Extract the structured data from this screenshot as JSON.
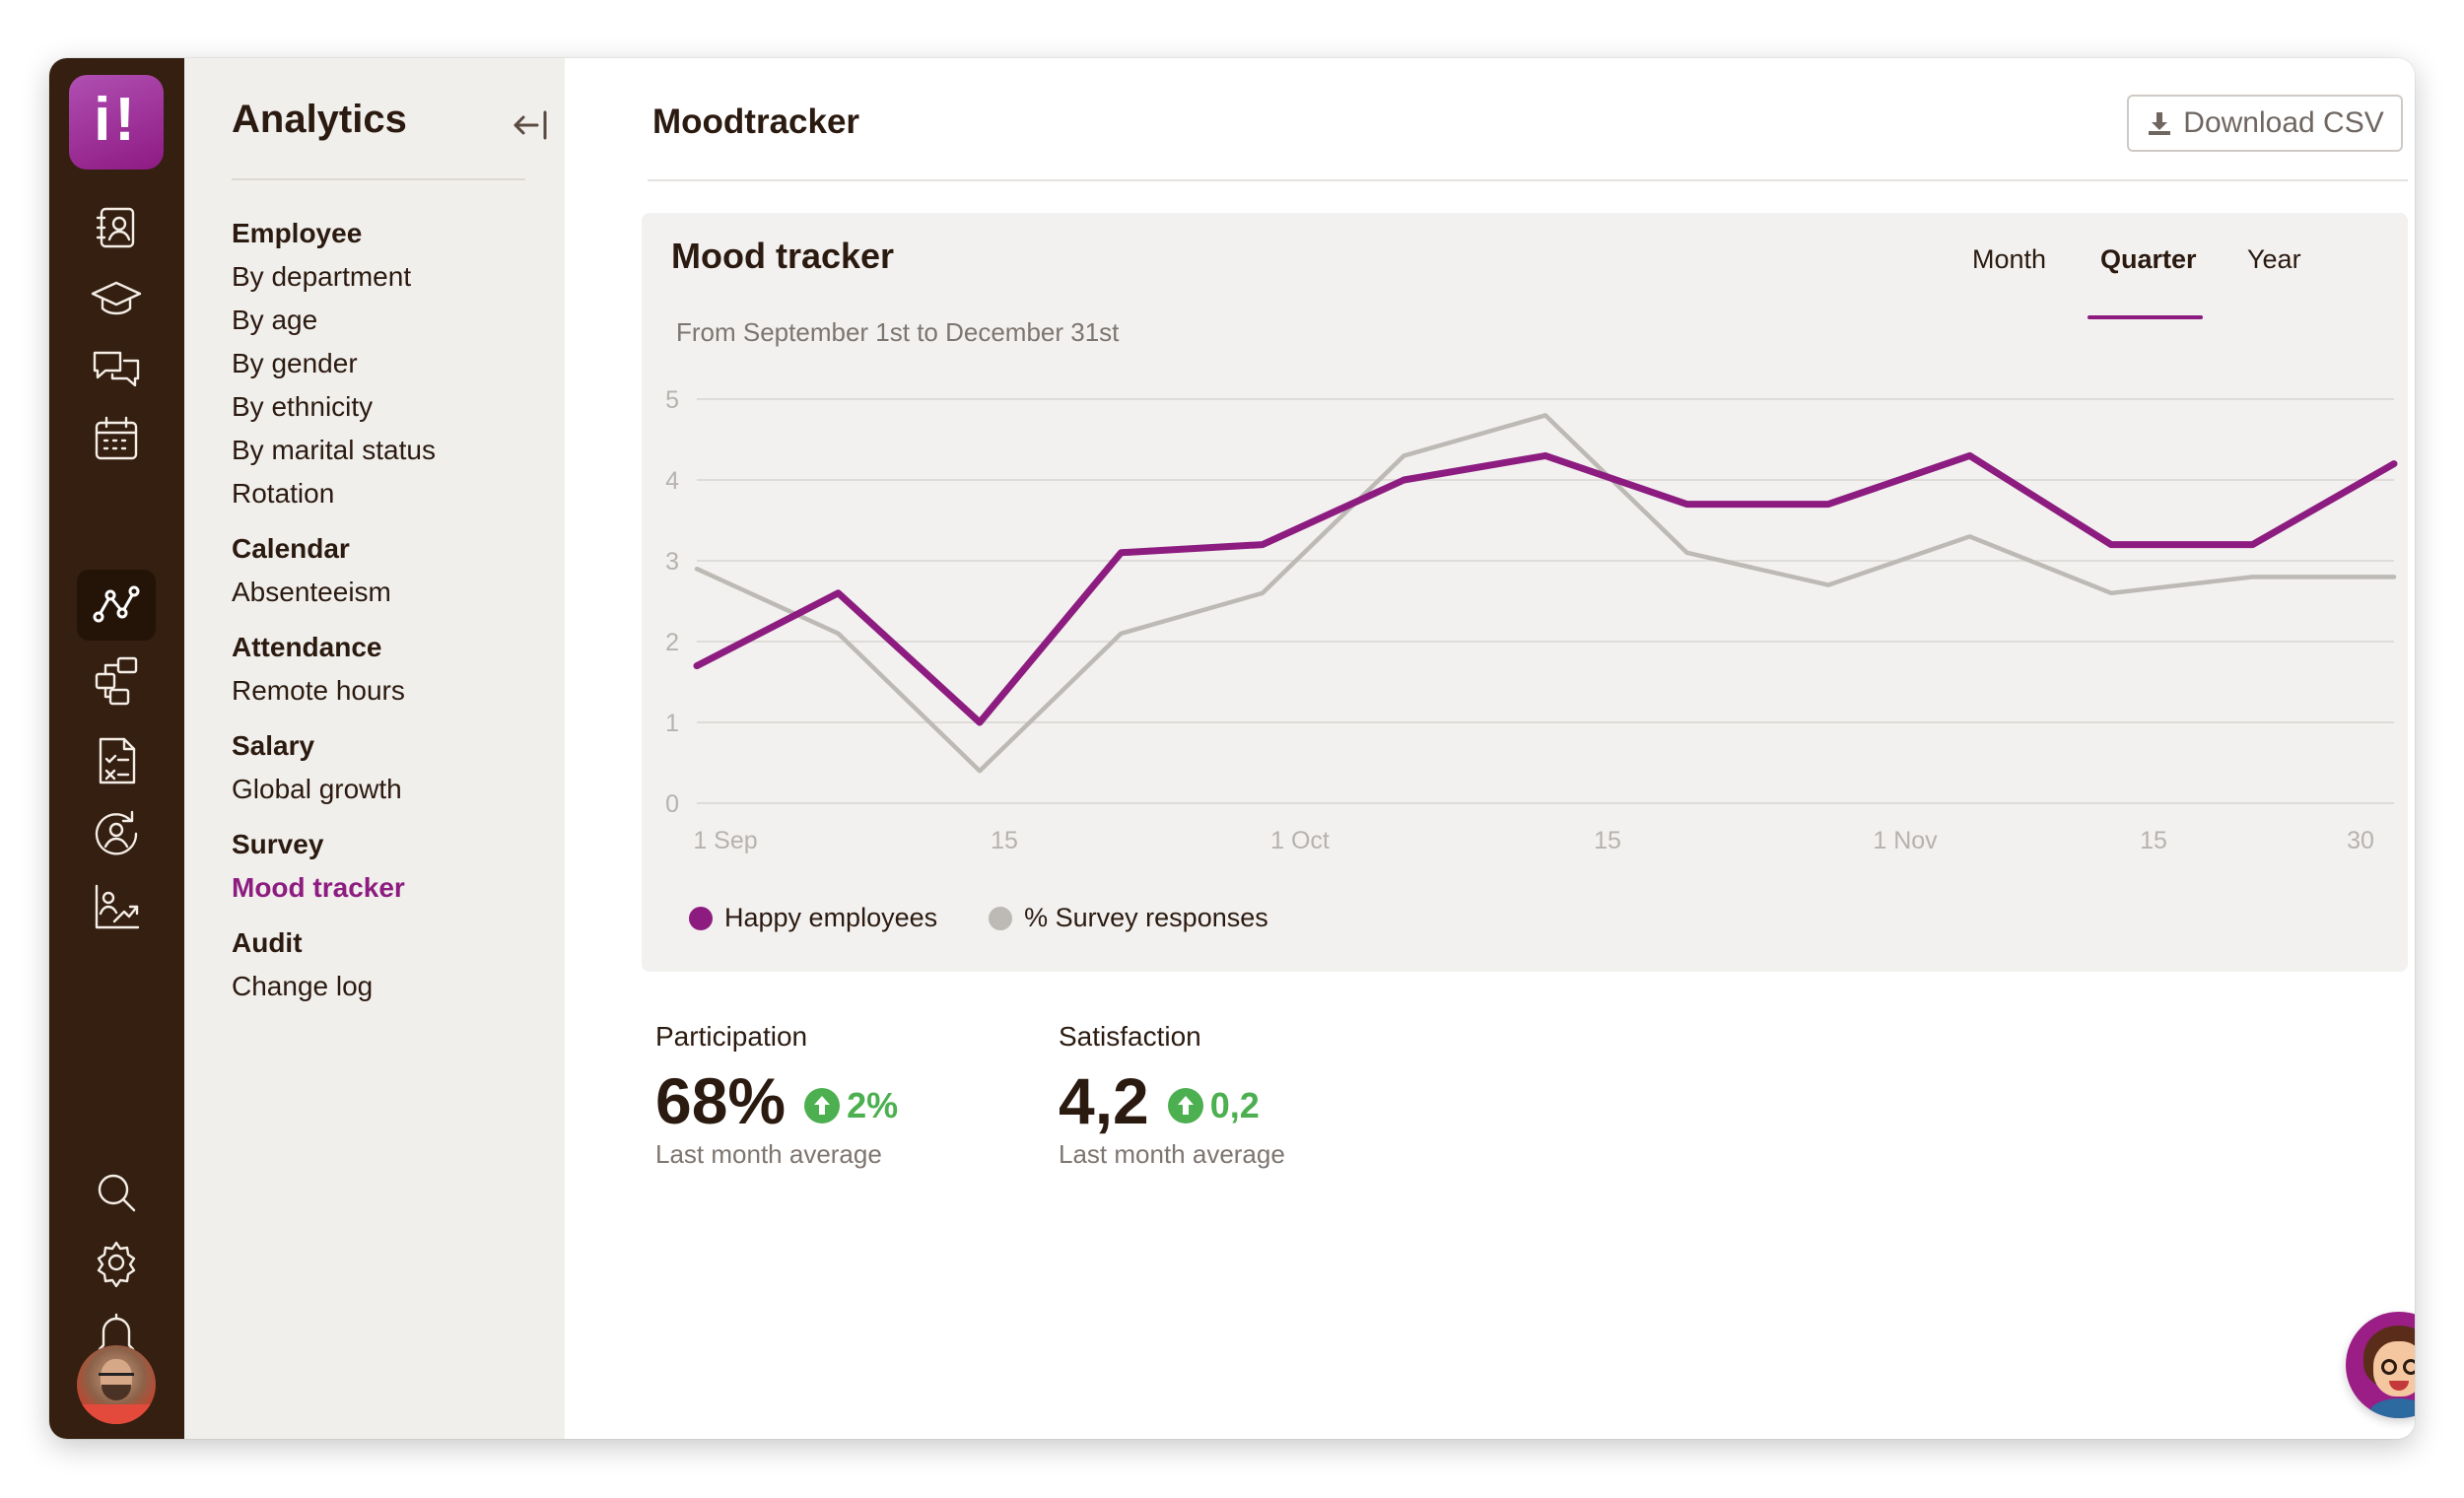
{
  "app": {
    "logo_text": "i!"
  },
  "rail": {
    "icons": [
      "directory-icon",
      "learning-icon",
      "chat-icon",
      "calendar-icon",
      "analytics-icon",
      "org-chart-icon",
      "checklist-icon",
      "people-cycle-icon",
      "growth-chart-icon"
    ],
    "active": "analytics-icon",
    "bottom_icons": [
      "search-icon",
      "gear-icon",
      "bell-icon"
    ]
  },
  "sidebar": {
    "title": "Analytics",
    "groups": [
      {
        "heading": "Employee",
        "links": [
          "By department",
          "By age",
          "By gender",
          "By ethnicity",
          "By marital status",
          "Rotation"
        ]
      },
      {
        "heading": "Calendar",
        "links": [
          "Absenteeism"
        ]
      },
      {
        "heading": "Attendance",
        "links": [
          "Remote hours"
        ]
      },
      {
        "heading": "Salary",
        "links": [
          "Global growth"
        ]
      },
      {
        "heading": "Survey",
        "links": [
          "Mood tracker"
        ]
      },
      {
        "heading": "Audit",
        "links": [
          "Change log"
        ]
      }
    ],
    "active_link": "Mood tracker"
  },
  "main": {
    "title": "Moodtracker",
    "download_label": "Download CSV"
  },
  "card": {
    "title": "Mood tracker",
    "subtitle": "From September 1st to December 31st",
    "tabs": [
      "Month",
      "Quarter",
      "Year"
    ],
    "active_tab": "Quarter"
  },
  "chart_data": {
    "type": "line",
    "title": "Mood tracker",
    "subtitle": "From September 1st to December 31st",
    "x_tick_labels": [
      "1 Sep",
      "15",
      "1 Oct",
      "15",
      "1 Nov",
      "15",
      "30"
    ],
    "y_ticks": [
      0,
      1,
      2,
      3,
      4,
      5
    ],
    "ylim": [
      0,
      5
    ],
    "grid": true,
    "legend_position": "bottom-left",
    "series": [
      {
        "name": "Happy employees",
        "color": "#8d1c80",
        "x": [
          0,
          1,
          2,
          3,
          4,
          5,
          6,
          7,
          8,
          9,
          10,
          11,
          12
        ],
        "values": [
          1.7,
          2.6,
          1.0,
          3.1,
          3.2,
          4.0,
          4.3,
          3.7,
          3.7,
          4.3,
          3.2,
          3.2,
          4.2
        ]
      },
      {
        "name": "% Survey responses",
        "color": "#bdb9b5",
        "x": [
          0,
          1,
          2,
          3,
          4,
          5,
          6,
          7,
          8,
          9,
          10,
          11,
          12
        ],
        "values": [
          2.9,
          2.1,
          0.4,
          2.1,
          2.6,
          4.3,
          4.8,
          3.1,
          2.7,
          3.3,
          2.6,
          2.8,
          2.8
        ]
      }
    ]
  },
  "stats": [
    {
      "label": "Participation",
      "value": "68%",
      "delta": "2%",
      "note": "Last month average",
      "trend": "up"
    },
    {
      "label": "Satisfaction",
      "value": "4,2",
      "delta": "0,2",
      "note": "Last month average",
      "trend": "up"
    }
  ],
  "colors": {
    "accent": "#8d1c80",
    "rail": "#341f10",
    "positive": "#4caf50"
  }
}
